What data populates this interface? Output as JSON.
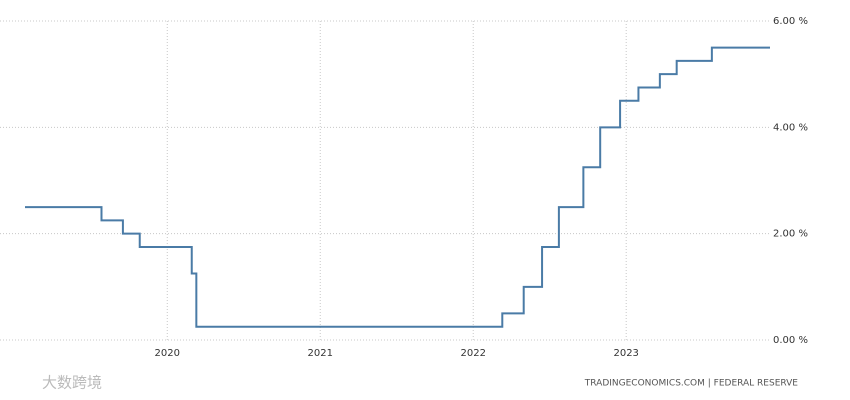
{
  "chart_data": {
    "type": "line",
    "x": [
      2019.07,
      2019.57,
      2019.57,
      2019.71,
      2019.71,
      2019.82,
      2019.82,
      2020.16,
      2020.16,
      2020.19,
      2020.19,
      2022.19,
      2022.19,
      2022.33,
      2022.33,
      2022.45,
      2022.45,
      2022.56,
      2022.56,
      2022.72,
      2022.72,
      2022.83,
      2022.83,
      2022.96,
      2022.96,
      2023.08,
      2023.08,
      2023.22,
      2023.22,
      2023.33,
      2023.33,
      2023.56,
      2023.56,
      2023.94
    ],
    "values": [
      2.5,
      2.5,
      2.25,
      2.25,
      2.0,
      2.0,
      1.75,
      1.75,
      1.25,
      1.25,
      0.25,
      0.25,
      0.5,
      0.5,
      1.0,
      1.0,
      1.75,
      1.75,
      2.5,
      2.5,
      3.25,
      3.25,
      4.0,
      4.0,
      4.5,
      4.5,
      4.75,
      4.75,
      5.0,
      5.0,
      5.25,
      5.25,
      5.5,
      5.5
    ],
    "color": "#4a7ba6",
    "xlim": [
      2019.07,
      2023.94
    ],
    "xticks": [
      2020,
      2021,
      2022,
      2023
    ],
    "ylim": [
      0,
      6
    ],
    "yticks": [
      {
        "value": 0,
        "label": "0.00 %"
      },
      {
        "value": 2,
        "label": "2.00 %"
      },
      {
        "value": 4,
        "label": "4.00 %"
      },
      {
        "value": 6,
        "label": "6.00 %"
      }
    ],
    "grid": true,
    "source": "TRADINGECONOMICS.COM  |  FEDERAL RESERVE",
    "watermark": "大数跨境"
  }
}
